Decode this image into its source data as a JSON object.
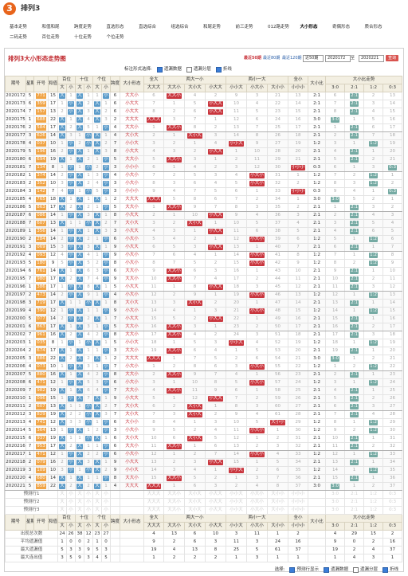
{
  "header": {
    "logo_text": "3",
    "title": "排列3"
  },
  "nav": {
    "items": [
      [
        "基本走势",
        "和值和尾",
        "跨度走势",
        "直选形态",
        "直选综合",
        "组选综合",
        "和尾走势",
        "前三走势",
        "012路走势",
        "大小形态",
        "奇偶形态",
        "质合形态"
      ],
      [
        "二码走势",
        "百位走势",
        "十位走势",
        "个位走势"
      ]
    ],
    "active": [
      0,
      9
    ]
  },
  "chart": {
    "title": "排列3大小形态走势图",
    "periods": [
      "最近50期",
      "最近80期",
      "最近120期"
    ],
    "active_period": 0,
    "select": "近50期",
    "start": "2020172",
    "to": "至",
    "end": "2020221",
    "query": "查询"
  },
  "options": {
    "label": "标注形式选择:",
    "items": [
      {
        "text": "遗漏数据",
        "checked": true
      },
      {
        "text": "遗漏分层",
        "checked": false
      },
      {
        "text": "折线",
        "checked": true
      }
    ]
  },
  "table": {
    "header1": [
      "期号",
      "星期",
      "开号",
      "和值",
      "百位",
      "十位",
      "个位",
      "跨度",
      "大小形态",
      "全大",
      "两大一小",
      "两小一大",
      "全小",
      "大小比",
      "大小比走势"
    ],
    "header2": [
      "大",
      "小",
      "大",
      "小",
      "大",
      "小",
      "大大大",
      "大大小",
      "大小大",
      "小大大",
      "小小大",
      "小大小",
      "大小小",
      "小小小",
      "3:0",
      "2:1",
      "1:2",
      "0:3"
    ],
    "rows": [
      [
        "2020172",
        5,
        "771",
        15,
        "大",
        1,
        "大",
        1,
        1,
        "小",
        6,
        "大大小",
        6,
        "大大小",
        4,
        2,
        9,
        3,
        21,
        13,
        "2:1",
        6,
        "2:1",
        2,
        13
      ],
      [
        "2020173",
        6,
        "359",
        17,
        1,
        "小",
        "大",
        2,
        "大",
        1,
        6,
        "小大大",
        7,
        1,
        5,
        "小大大",
        10,
        4,
        22,
        14,
        "2:1",
        7,
        "2:1",
        3,
        14
      ],
      [
        "2020174",
        7,
        "157",
        13,
        2,
        "小",
        "大",
        3,
        "大",
        2,
        6,
        "小大大",
        8,
        2,
        6,
        "小大大",
        11,
        5,
        23,
        15,
        "2:1",
        8,
        "2:1",
        4,
        15
      ],
      [
        "2020175",
        1,
        "688",
        22,
        "大",
        1,
        "大",
        4,
        "大",
        3,
        2,
        "大大大",
        "大大大",
        3,
        7,
        1,
        12,
        6,
        24,
        16,
        "3:0",
        "3:0",
        1,
        5,
        16
      ],
      [
        "2020176",
        2,
        "584",
        17,
        "大",
        2,
        "大",
        5,
        1,
        "小",
        4,
        "大大小",
        1,
        "大大小",
        8,
        2,
        13,
        7,
        25,
        17,
        "2:1",
        1,
        "2:1",
        6,
        17
      ],
      [
        "2020177",
        3,
        "626",
        14,
        "大",
        3,
        1,
        "小",
        "大",
        1,
        4,
        "大小大",
        2,
        1,
        "大小大",
        3,
        14,
        8,
        26,
        18,
        "2:1",
        2,
        "2:1",
        7,
        18
      ],
      [
        "2020178",
        4,
        "037",
        10,
        1,
        "小",
        2,
        "小",
        "大",
        2,
        7,
        "小小大",
        3,
        2,
        1,
        4,
        "小小大",
        9,
        27,
        19,
        "1:2",
        3,
        1,
        "1:2",
        19
      ],
      [
        "2020179",
        5,
        "196",
        16,
        2,
        "小",
        "大",
        1,
        "大",
        3,
        8,
        "小大大",
        4,
        3,
        2,
        "小大大",
        1,
        10,
        28,
        20,
        "2:1",
        4,
        "2:1",
        1,
        20
      ],
      [
        "2020180",
        6,
        "694",
        19,
        "大",
        1,
        "大",
        2,
        1,
        "小",
        5,
        "大大小",
        5,
        "大大小",
        3,
        1,
        2,
        11,
        29,
        21,
        "2:1",
        5,
        "2:1",
        2,
        21
      ],
      [
        "2020181",
        7,
        "134",
        8,
        1,
        "小",
        1,
        "小",
        2,
        "小",
        3,
        "小小小",
        6,
        1,
        4,
        2,
        3,
        12,
        30,
        "小小小",
        "0:3",
        6,
        1,
        3,
        "0:3"
      ],
      [
        "2020182",
        1,
        "374",
        14,
        2,
        "小",
        "大",
        1,
        3,
        "小",
        4,
        "小大小",
        7,
        2,
        5,
        3,
        4,
        "小大小",
        31,
        1,
        "1:2",
        7,
        2,
        "1:2",
        1
      ],
      [
        "2020183",
        2,
        "352",
        10,
        3,
        "小",
        "大",
        2,
        4,
        "小",
        3,
        "小大小",
        8,
        3,
        6,
        4,
        5,
        "小大小",
        32,
        2,
        "1:2",
        8,
        3,
        "1:2",
        2
      ],
      [
        "2020184",
        3,
        "142",
        7,
        4,
        "小",
        1,
        "小",
        5,
        "小",
        3,
        "小小小",
        9,
        4,
        7,
        5,
        6,
        1,
        33,
        "小小小",
        "0:3",
        9,
        4,
        1,
        "0:3"
      ],
      [
        "2020185",
        4,
        "765",
        18,
        "大",
        1,
        "大",
        1,
        "大",
        1,
        2,
        "大大大",
        "大大大",
        5,
        8,
        6,
        7,
        2,
        34,
        1,
        "3:0",
        "3:0",
        5,
        2,
        1
      ],
      [
        "2020186",
        5,
        "863",
        17,
        "大",
        2,
        "大",
        2,
        1,
        "小",
        5,
        "大大小",
        1,
        "大大小",
        9,
        7,
        8,
        3,
        35,
        2,
        "2:1",
        1,
        "2:1",
        3,
        2
      ],
      [
        "2020187",
        6,
        "086",
        14,
        1,
        "小",
        "大",
        3,
        "大",
        1,
        8,
        "小大大",
        2,
        1,
        10,
        "小大大",
        9,
        4,
        36,
        3,
        "2:1",
        2,
        "2:1",
        4,
        3
      ],
      [
        "2020188",
        7,
        "607",
        13,
        "大",
        1,
        1,
        "小",
        "大",
        2,
        7,
        "大小大",
        3,
        2,
        "大小大",
        1,
        10,
        5,
        37,
        4,
        "2:1",
        3,
        "2:1",
        5,
        4
      ],
      [
        "2020189",
        1,
        "356",
        14,
        1,
        "小",
        "大",
        1,
        "大",
        3,
        3,
        "小大大",
        4,
        3,
        1,
        "小大大",
        11,
        6,
        38,
        5,
        "2:1",
        4,
        "2:1",
        6,
        5
      ],
      [
        "2020190",
        2,
        "284",
        14,
        2,
        "小",
        "大",
        2,
        1,
        "小",
        6,
        "小大小",
        5,
        4,
        2,
        1,
        12,
        "小大小",
        39,
        6,
        "1:2",
        5,
        1,
        "1:2",
        6
      ],
      [
        "2020191",
        3,
        "069",
        15,
        3,
        "小",
        "大",
        3,
        "大",
        1,
        9,
        "小大大",
        6,
        5,
        3,
        "小大大",
        13,
        1,
        40,
        7,
        "2:1",
        6,
        "2:1",
        1,
        7
      ],
      [
        "2020192",
        4,
        "093",
        12,
        4,
        "小",
        "大",
        4,
        1,
        "小",
        9,
        "小大小",
        7,
        6,
        4,
        1,
        14,
        "小大小",
        41,
        8,
        "1:2",
        7,
        1,
        "1:2",
        8
      ],
      [
        "2020193",
        5,
        "180",
        9,
        5,
        "小",
        "大",
        5,
        2,
        "小",
        8,
        "小大小",
        8,
        7,
        5,
        2,
        15,
        "小大小",
        42,
        9,
        "1:2",
        8,
        2,
        "1:2",
        9
      ],
      [
        "2020194",
        6,
        "761",
        14,
        "大",
        1,
        "大",
        6,
        3,
        "小",
        6,
        "大大小",
        9,
        "大大小",
        6,
        3,
        16,
        1,
        43,
        10,
        "2:1",
        9,
        "2:1",
        1,
        10
      ],
      [
        "2020195",
        7,
        "980",
        17,
        "大",
        2,
        "大",
        7,
        4,
        "小",
        9,
        "大大小",
        10,
        "大大小",
        7,
        4,
        17,
        2,
        44,
        11,
        "2:1",
        10,
        "2:1",
        2,
        11
      ],
      [
        "2020196",
        1,
        "386",
        17,
        1,
        "小",
        "大",
        8,
        "大",
        1,
        5,
        "小大大",
        11,
        1,
        8,
        "小大大",
        18,
        3,
        45,
        12,
        "2:1",
        11,
        "2:1",
        3,
        12
      ],
      [
        "2020197",
        2,
        "473",
        14,
        2,
        "小",
        "大",
        9,
        1,
        "小",
        4,
        "小大小",
        12,
        2,
        9,
        1,
        19,
        "小大小",
        46,
        13,
        "1:2",
        12,
        1,
        "1:2",
        13
      ],
      [
        "2020198",
        3,
        "719",
        17,
        "大",
        1,
        1,
        "小",
        "大",
        1,
        8,
        "大小大",
        13,
        3,
        "大小大",
        2,
        20,
        1,
        47,
        14,
        "2:1",
        13,
        "2:1",
        1,
        14
      ],
      [
        "2020199",
        4,
        "390",
        12,
        1,
        "小",
        "大",
        1,
        1,
        "小",
        9,
        "小大小",
        14,
        4,
        1,
        3,
        21,
        "小大小",
        48,
        15,
        "1:2",
        14,
        1,
        "1:2",
        15
      ],
      [
        "2020200",
        5,
        "077",
        14,
        2,
        "小",
        "大",
        2,
        "大",
        1,
        7,
        "小大大",
        15,
        5,
        2,
        "小大大",
        22,
        1,
        49,
        16,
        "2:1",
        15,
        "2:1",
        1,
        16
      ],
      [
        "2020201",
        6,
        "863",
        17,
        "大",
        1,
        "大",
        3,
        1,
        "小",
        5,
        "大大小",
        16,
        "大大小",
        3,
        1,
        23,
        2,
        50,
        17,
        "2:1",
        16,
        "2:1",
        2,
        17
      ],
      [
        "2020202",
        7,
        "961",
        16,
        "大",
        2,
        "大",
        4,
        2,
        "小",
        8,
        "大大小",
        17,
        "大大小",
        4,
        2,
        24,
        3,
        51,
        18,
        "2:1",
        17,
        "2:1",
        3,
        18
      ],
      [
        "2020203",
        1,
        "035",
        8,
        1,
        "小",
        1,
        "小",
        "大",
        1,
        5,
        "小小大",
        18,
        1,
        5,
        3,
        "小小大",
        4,
        52,
        19,
        "1:2",
        18,
        1,
        "1:2",
        19
      ],
      [
        "2020204",
        2,
        "674",
        17,
        "大",
        1,
        "大",
        1,
        1,
        "小",
        3,
        "大大小",
        19,
        "大大小",
        6,
        4,
        1,
        5,
        53,
        20,
        "2:1",
        19,
        "2:1",
        1,
        20
      ],
      [
        "2020205",
        3,
        "886",
        22,
        "大",
        2,
        "大",
        2,
        "大",
        1,
        2,
        "大大大",
        "大大大",
        1,
        7,
        5,
        2,
        6,
        54,
        21,
        "3:0",
        "3:0",
        1,
        2,
        21
      ],
      [
        "2020206",
        4,
        "073",
        10,
        1,
        "小",
        "大",
        3,
        1,
        "小",
        7,
        "小大小",
        1,
        2,
        8,
        6,
        3,
        "小大小",
        55,
        22,
        "1:2",
        1,
        2,
        "1:2",
        22
      ],
      [
        "2020207",
        5,
        "880",
        16,
        "大",
        1,
        "大",
        4,
        2,
        "小",
        8,
        "大大小",
        2,
        "大大小",
        9,
        7,
        4,
        1,
        56,
        23,
        "2:1",
        2,
        "2:1",
        1,
        23
      ],
      [
        "2020208",
        6,
        "471",
        12,
        1,
        "小",
        "大",
        5,
        3,
        "小",
        6,
        "小大小",
        3,
        1,
        10,
        8,
        5,
        "小大小",
        57,
        24,
        "1:2",
        3,
        1,
        "1:2",
        24
      ],
      [
        "2020209",
        7,
        "982",
        19,
        "大",
        1,
        "大",
        6,
        4,
        "小",
        7,
        "大大小",
        4,
        "大大小",
        11,
        9,
        6,
        1,
        58,
        25,
        "2:1",
        4,
        "2:1",
        1,
        25
      ],
      [
        "2020210",
        1,
        "096",
        15,
        1,
        "小",
        "大",
        7,
        "大",
        1,
        9,
        "小大大",
        5,
        1,
        12,
        "小大大",
        7,
        2,
        59,
        26,
        "2:1",
        5,
        "2:1",
        2,
        26
      ],
      [
        "2020211",
        2,
        "607",
        13,
        "大",
        1,
        1,
        "小",
        "大",
        2,
        7,
        "大小大",
        6,
        2,
        "大小大",
        1,
        8,
        3,
        60,
        27,
        "2:1",
        6,
        "2:1",
        3,
        27
      ],
      [
        "2020212",
        3,
        "829",
        19,
        "大",
        2,
        2,
        "小",
        "大",
        3,
        7,
        "大小大",
        7,
        3,
        "大小大",
        2,
        9,
        4,
        61,
        28,
        "2:1",
        7,
        "2:1",
        4,
        28
      ],
      [
        "2020213",
        4,
        "741",
        12,
        "大",
        3,
        3,
        "小",
        1,
        "小",
        6,
        "大小小",
        8,
        4,
        1,
        3,
        10,
        5,
        "大小小",
        29,
        "1:2",
        8,
        1,
        "1:2",
        29
      ],
      [
        "2020214",
        5,
        "364",
        13,
        1,
        "小",
        "大",
        1,
        2,
        "小",
        3,
        "小大小",
        9,
        5,
        2,
        4,
        11,
        "小大小",
        1,
        30,
        "1:2",
        9,
        2,
        "1:2",
        30
      ],
      [
        "2020215",
        6,
        "937",
        19,
        "大",
        1,
        1,
        "小",
        "大",
        1,
        6,
        "大小大",
        10,
        6,
        "大小大",
        5,
        12,
        1,
        2,
        31,
        "2:1",
        10,
        "2:1",
        1,
        31
      ],
      [
        "2020216",
        7,
        "953",
        17,
        "大",
        2,
        "大",
        1,
        1,
        "小",
        6,
        "大大小",
        11,
        "大大小",
        1,
        6,
        13,
        2,
        3,
        32,
        "2:1",
        11,
        "2:1",
        2,
        32
      ],
      [
        "2020217",
        1,
        "471",
        12,
        1,
        "小",
        "大",
        2,
        2,
        "小",
        6,
        "小大小",
        12,
        1,
        2,
        7,
        14,
        "小大小",
        4,
        33,
        "1:2",
        12,
        1,
        "1:2",
        33
      ],
      [
        "2020218",
        2,
        "079",
        16,
        2,
        "小",
        "大",
        3,
        "大",
        1,
        9,
        "小大大",
        13,
        2,
        3,
        "小大大",
        15,
        1,
        5,
        34,
        "2:1",
        13,
        "2:1",
        1,
        34
      ],
      [
        "2020219",
        3,
        "109",
        10,
        3,
        "小",
        1,
        "小",
        "大",
        2,
        9,
        "小小大",
        14,
        3,
        4,
        1,
        "小小大",
        2,
        6,
        35,
        "1:2",
        14,
        1,
        "1:2",
        35
      ],
      [
        "2020220",
        4,
        "680",
        14,
        "大",
        1,
        "大",
        1,
        1,
        "小",
        8,
        "大大小",
        15,
        "大大小",
        5,
        2,
        1,
        3,
        7,
        36,
        "2:1",
        15,
        "2:1",
        1,
        36
      ],
      [
        "2020221",
        5,
        "859",
        22,
        "大",
        2,
        "大",
        2,
        "大",
        1,
        4,
        "大大大",
        "大大大",
        1,
        6,
        3,
        2,
        4,
        8,
        37,
        "3:0",
        "3:0",
        1,
        2,
        37
      ]
    ],
    "predict": [
      "预测行1",
      "预测行2",
      "预测行3"
    ],
    "stats": [
      {
        "label": "出现总次数",
        "values": [
          24,
          26,
          38,
          12,
          23,
          27,
          4,
          13,
          6,
          10,
          3,
          11,
          1,
          2,
          4,
          29,
          15,
          2
        ]
      },
      {
        "label": "平均遗漏值",
        "values": [
          1,
          0,
          0,
          2,
          1,
          0,
          9,
          2,
          6,
          3,
          11,
          3,
          24,
          16,
          9,
          0,
          2,
          16
        ]
      },
      {
        "label": "最大遗漏值",
        "values": [
          5,
          3,
          3,
          9,
          5,
          3,
          19,
          4,
          13,
          8,
          25,
          5,
          61,
          37,
          19,
          2,
          4,
          37
        ]
      },
      {
        "label": "最大连出值",
        "values": [
          3,
          5,
          9,
          3,
          4,
          5,
          1,
          2,
          2,
          2,
          1,
          3,
          1,
          1,
          1,
          4,
          3,
          1
        ]
      }
    ]
  },
  "footer": {
    "label": "选择:",
    "items": [
      {
        "text": "预测行显示",
        "checked": true
      },
      {
        "text": "遗漏数据",
        "checked": true
      },
      {
        "text": "遗漏分层",
        "checked": false
      },
      {
        "text": "折线",
        "checked": true
      }
    ]
  }
}
